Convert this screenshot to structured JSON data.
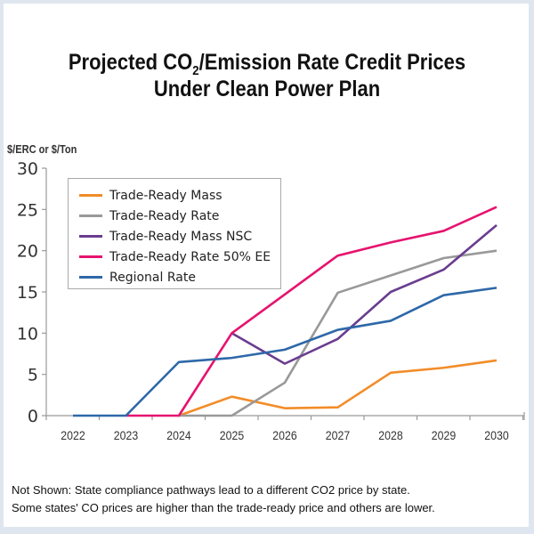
{
  "title": {
    "line1_pre": "Projected CO",
    "line1_sub": "2",
    "line1_post": "/Emission Rate Credit Prices",
    "line2": "Under Clean Power Plan"
  },
  "note": {
    "line1": "Not Shown: State compliance pathways lead to a different CO2 price by state.",
    "line2": "Some states' CO prices are higher than the trade-ready price and others are lower."
  },
  "chart_data": {
    "type": "line",
    "title": "Projected CO2/Emission Rate Credit Prices Under Clean Power Plan",
    "xlabel": "",
    "ylabel": "$/ERC or $/Ton",
    "x": [
      "2022",
      "2023",
      "2024",
      "2025",
      "2026",
      "2027",
      "2028",
      "2029",
      "2030"
    ],
    "ylim": [
      0,
      30
    ],
    "yticks": [
      0,
      5,
      10,
      15,
      20,
      25,
      30
    ],
    "grid": false,
    "legend_position": "top-left",
    "series": [
      {
        "name": "Trade-Ready Mass",
        "color": "#f28c28",
        "values": [
          null,
          null,
          0,
          2.3,
          0.9,
          1.0,
          5.2,
          5.8,
          6.7
        ]
      },
      {
        "name": "Trade-Ready Rate",
        "color": "#999999",
        "values": [
          null,
          null,
          0,
          0,
          4.0,
          14.9,
          17.0,
          19.1,
          20.0
        ]
      },
      {
        "name": "Trade-Ready Mass NSC",
        "color": "#6a3d8f",
        "values": [
          null,
          null,
          null,
          10.0,
          6.3,
          9.3,
          15.0,
          17.7,
          23.1
        ]
      },
      {
        "name": "Trade-Ready Rate 50% EE",
        "color": "#e6136f",
        "values": [
          null,
          0,
          0,
          10.0,
          14.7,
          19.4,
          21.0,
          22.4,
          25.3
        ]
      },
      {
        "name": "Regional Rate",
        "color": "#2e68a8",
        "values": [
          0,
          0,
          6.5,
          7.0,
          8.0,
          10.4,
          11.5,
          14.6,
          15.5
        ]
      }
    ]
  }
}
